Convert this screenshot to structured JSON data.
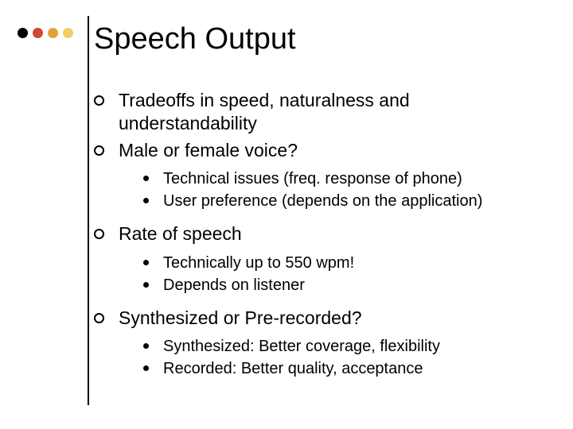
{
  "colors": {
    "dot1": "#000000",
    "dot2": "#ca4a2f",
    "dot3": "#e2a239",
    "dot4": "#f0cf68",
    "text": "#000000",
    "background": "#ffffff"
  },
  "title": "Speech Output",
  "bullets": [
    {
      "text": "Tradeoffs in speed, naturalness and understandability",
      "sub": []
    },
    {
      "text": "Male or female voice?",
      "sub": [
        "Technical issues (freq. response of phone)",
        "User preference (depends on the application)"
      ]
    },
    {
      "text": "Rate of speech",
      "sub": [
        "Technically up to 550 wpm!",
        "Depends on listener"
      ]
    },
    {
      "text": "Synthesized or Pre-recorded?",
      "sub": [
        "Synthesized: Better coverage, flexibility",
        "Recorded: Better quality, acceptance"
      ]
    }
  ]
}
